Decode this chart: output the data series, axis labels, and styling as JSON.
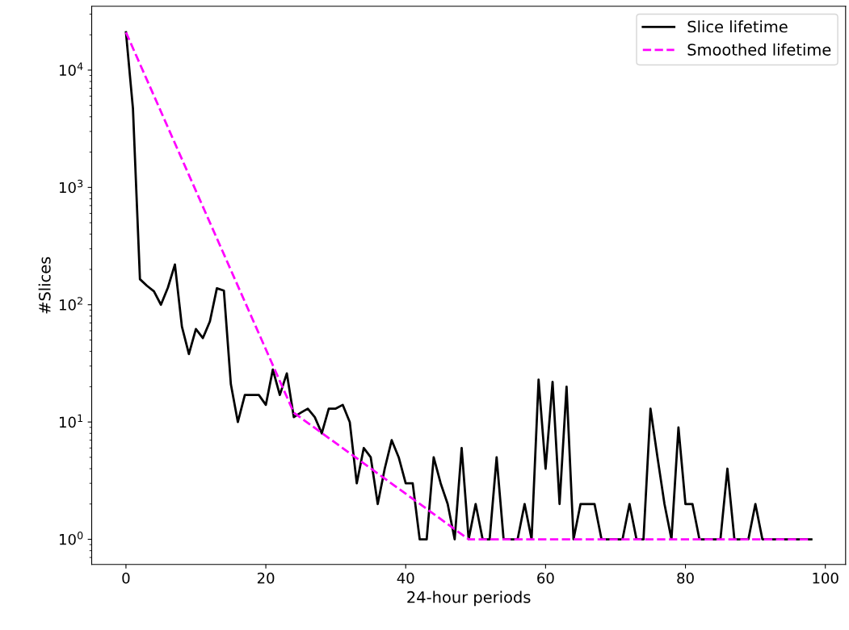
{
  "chart_data": {
    "type": "line",
    "xlabel": "24-hour periods",
    "ylabel": "#Slices",
    "log": "y",
    "grid": false,
    "legend": "top right",
    "xlim": [
      -4.9,
      102.9
    ],
    "xticks": [
      0,
      20,
      40,
      60,
      80,
      100
    ],
    "ylim": [
      0.61,
      35000
    ],
    "yticks": [
      {
        "value": 1,
        "label": "10$^{0}$"
      },
      {
        "value": 10,
        "label": "10$^{1}$"
      },
      {
        "value": 100,
        "label": "10$^{2}$"
      },
      {
        "value": 1000,
        "label": "10$^{3}$"
      },
      {
        "value": 10000,
        "label": "10$^{4}$"
      }
    ],
    "series": [
      {
        "name": "Slice lifetime",
        "color": "#000000",
        "line_style": "solid",
        "x": [
          0,
          1,
          2,
          3,
          4,
          5,
          6,
          7,
          8,
          9,
          10,
          11,
          12,
          13,
          14,
          15,
          16,
          17,
          18,
          19,
          20,
          21,
          22,
          23,
          24,
          25,
          26,
          27,
          28,
          29,
          30,
          31,
          32,
          33,
          34,
          35,
          36,
          37,
          38,
          39,
          40,
          41,
          42,
          43,
          44,
          45,
          46,
          47,
          48,
          49,
          50,
          51,
          52,
          53,
          54,
          55,
          56,
          57,
          58,
          59,
          60,
          61,
          62,
          63,
          64,
          65,
          66,
          67,
          68,
          69,
          70,
          71,
          72,
          73,
          74,
          75,
          76,
          77,
          78,
          79,
          80,
          81,
          82,
          83,
          84,
          85,
          86,
          87,
          88,
          89,
          90,
          91,
          92,
          93,
          94,
          95,
          96,
          97,
          98
        ],
        "values": [
          21000,
          4700,
          165,
          145,
          130,
          100,
          140,
          220,
          65,
          38,
          62,
          52,
          72,
          138,
          132,
          21,
          10,
          17,
          17,
          17,
          14,
          28,
          17,
          26,
          11,
          12,
          13,
          11,
          8,
          13,
          13,
          14,
          10,
          3,
          6,
          5,
          2,
          4,
          7,
          5,
          3,
          3,
          1,
          1,
          5,
          3,
          2,
          1,
          6,
          1,
          2,
          1,
          1,
          5,
          1,
          1,
          1,
          2,
          1,
          23,
          4,
          22,
          2,
          20,
          1,
          2,
          2,
          2,
          1,
          1,
          1,
          1,
          2,
          1,
          1,
          13,
          5,
          2,
          1,
          9,
          2,
          2,
          1,
          1,
          1,
          1,
          4,
          1,
          1,
          1,
          2,
          1,
          1,
          1,
          1,
          1,
          1,
          1,
          1
        ]
      },
      {
        "name": "Smoothed lifetime",
        "color": "#ff00ff",
        "line_style": "dashed",
        "x": [
          0,
          24,
          49,
          98
        ],
        "values": [
          21000,
          12,
          1,
          1
        ]
      }
    ]
  }
}
